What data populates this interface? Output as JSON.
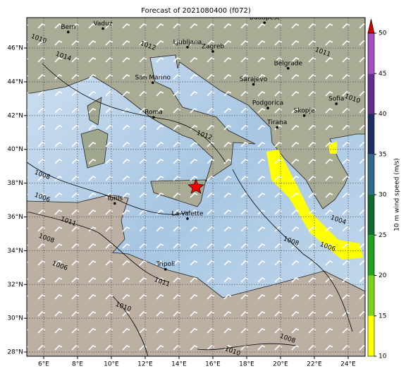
{
  "title": "Forecast of 2021080400 (f072)",
  "map": {
    "xlim": [
      5,
      25
    ],
    "ylim": [
      27.75,
      47.8
    ],
    "xticks": [
      {
        "value": 6,
        "label": "6°E"
      },
      {
        "value": 8,
        "label": "8°E"
      },
      {
        "value": 10,
        "label": "10°E"
      },
      {
        "value": 12,
        "label": "12°E"
      },
      {
        "value": 14,
        "label": "14°E"
      },
      {
        "value": 16,
        "label": "16°E"
      },
      {
        "value": 18,
        "label": "18°E"
      },
      {
        "value": 20,
        "label": "20°E"
      },
      {
        "value": 22,
        "label": "22°E"
      },
      {
        "value": 24,
        "label": "24°E"
      }
    ],
    "yticks": [
      {
        "value": 28,
        "label": "28°N"
      },
      {
        "value": 30,
        "label": "30°N"
      },
      {
        "value": 32,
        "label": "32°N"
      },
      {
        "value": 34,
        "label": "34°N"
      },
      {
        "value": 36,
        "label": "36°N"
      },
      {
        "value": 38,
        "label": "38°N"
      },
      {
        "value": 40,
        "label": "40°N"
      },
      {
        "value": 42,
        "label": "42°N"
      },
      {
        "value": 44,
        "label": "44°N"
      },
      {
        "value": 46,
        "label": "46°N"
      }
    ],
    "grid": true,
    "cities": [
      "Bern",
      "Vaduz",
      "Budapest",
      "Ljubljana",
      "Zagreb",
      "Belgrade",
      "San Marino",
      "Sarajevo",
      "Podgorica",
      "Roma",
      "Skopje",
      "Sofia",
      "Tirana",
      "Tunis",
      "La Valette",
      "Tripoli"
    ],
    "isobar_labels": [
      "1010",
      "1012",
      "1014",
      "1012",
      "1008",
      "1006",
      "1011",
      "1008",
      "1006",
      "1011",
      "1010",
      "1004",
      "1008",
      "1006",
      "1010",
      "1008",
      "1011",
      "1010"
    ]
  },
  "colorbar": {
    "label": "10 m wind speed (m/s)",
    "lim": [
      10,
      50
    ],
    "ticks": [
      10,
      15,
      20,
      25,
      30,
      35,
      40,
      45,
      50
    ],
    "colors": [
      "#ffff00",
      "#7fd21a",
      "#1fa31f",
      "#0e6b2e",
      "#2f6a8a",
      "#1e2d62",
      "#6a2b8e",
      "#a64fc2"
    ]
  }
}
